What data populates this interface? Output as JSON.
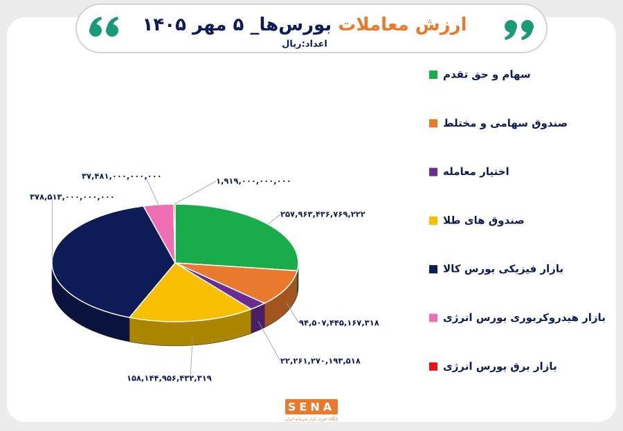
{
  "chart_data": {
    "type": "pie3d",
    "title_parts": [
      "ارزش معاملات",
      "بورس‌ها_ ۵ مهر ۱۴۰۵"
    ],
    "subtitle": "اعداد:ریال",
    "logo": "SENA",
    "tagline": "پایگاه خبری بازار سرمایه ایران",
    "categories": [
      "سهام و حق تقدم",
      "صندوق سهامی و مختلط",
      "اختیار معامله",
      "صندوق های طلا",
      "بازار فیزیکی بورس کالا",
      "بازار هیدروکربوری بورس انرژی",
      "بازار برق بورس انرژی"
    ],
    "values": [
      257963436769222,
      94507445167318,
      22261270193518,
      158144956432319,
      378513000000000,
      37481000000000,
      1919000000000
    ],
    "value_labels": [
      "۲۵۷,۹۶۳,۴۳۶,۷۶۹,۲۲۲",
      "۹۴,۵۰۷,۴۴۵,۱۶۷,۳۱۸",
      "۲۲,۲۶۱,۲۷۰,۱۹۳,۵۱۸",
      "۱۵۸,۱۴۴,۹۵۶,۴۳۲,۳۱۹",
      "۳۷۸,۵۱۳,۰۰۰,۰۰۰,۰۰۰",
      "۳۷,۴۸۱,۰۰۰,۰۰۰,۰۰۰",
      "۱,۹۱۹,۰۰۰,۰۰۰,۰۰۰"
    ],
    "colors": [
      "#1aab4b",
      "#e8792d",
      "#6a2c91",
      "#f7bf00",
      "#0d1b57",
      "#ef6fb4",
      "#e5141b"
    ]
  }
}
